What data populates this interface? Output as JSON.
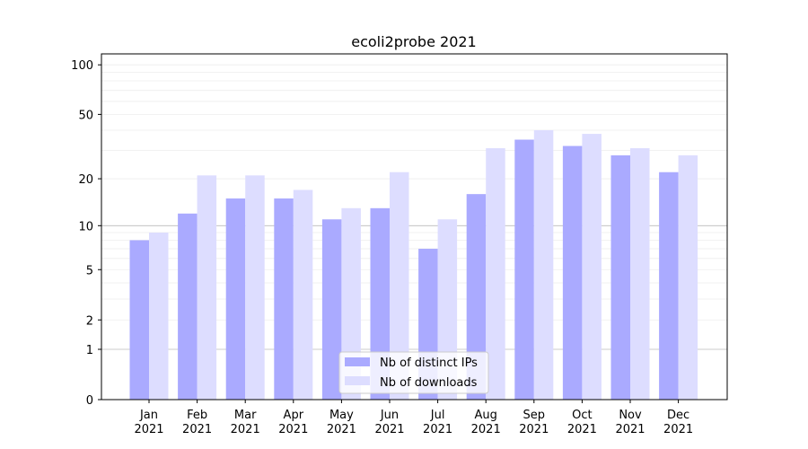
{
  "chart_data": {
    "type": "bar",
    "title": "ecoli2probe 2021",
    "xlabel": "",
    "ylabel": "",
    "yscale": "log(1+y)",
    "ylim": [
      0,
      116
    ],
    "yticks": [
      0,
      1,
      2,
      5,
      10,
      20,
      50,
      100
    ],
    "categories": [
      "Jan\n2021",
      "Feb\n2021",
      "Mar\n2021",
      "Apr\n2021",
      "May\n2021",
      "Jun\n2021",
      "Jul\n2021",
      "Aug\n2021",
      "Sep\n2021",
      "Oct\n2021",
      "Nov\n2021",
      "Dec\n2021"
    ],
    "series": [
      {
        "name": "Nb of distinct IPs",
        "color": "#aaaaff",
        "values": [
          8,
          12,
          15,
          15,
          11,
          13,
          7,
          16,
          35,
          32,
          28,
          22
        ]
      },
      {
        "name": "Nb of downloads",
        "color": "#ddddff",
        "values": [
          9,
          21,
          21,
          17,
          13,
          22,
          11,
          31,
          40,
          38,
          31,
          28
        ]
      }
    ],
    "legend": "bottom-center",
    "grid": true
  }
}
